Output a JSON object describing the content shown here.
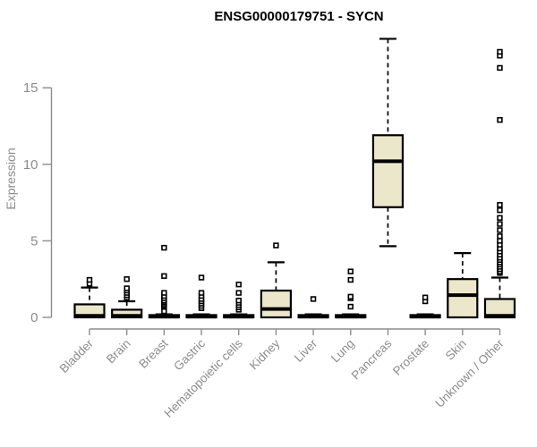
{
  "chart_data": {
    "type": "box",
    "title": "ENSG00000179751 - SYCN",
    "xlabel": "",
    "ylabel": "Expression",
    "legend": "none",
    "grid": false,
    "y_axis": {
      "ticks": [
        0,
        5,
        10,
        15
      ],
      "range": [
        -0.8,
        19.0
      ]
    },
    "categories": [
      "Bladder",
      "Brain",
      "Breast",
      "Gastric",
      "Hematopoietic cells",
      "Kidney",
      "Liver",
      "Lung",
      "Pancreas",
      "Prostate",
      "Skin",
      "Unknown / Other"
    ],
    "boxes": [
      {
        "category": "Bladder",
        "whislo": 0,
        "q1": 0,
        "med": 0.1,
        "q3": 0.85,
        "whishi": 1.95,
        "outliers": [
          2.2,
          2.45
        ]
      },
      {
        "category": "Brain",
        "whislo": 0,
        "q1": 0,
        "med": 0.1,
        "q3": 0.5,
        "whishi": 1.05,
        "outliers": [
          1.3,
          1.45,
          1.6,
          1.75,
          1.9,
          2.5
        ]
      },
      {
        "category": "Breast",
        "whislo": 0,
        "q1": 0,
        "med": 0.05,
        "q3": 0.15,
        "whishi": 0.2,
        "outliers": [
          0.4,
          0.7,
          0.8,
          0.9,
          1.0,
          1.1,
          1.25,
          1.4,
          1.6,
          2.7,
          4.55
        ]
      },
      {
        "category": "Gastric",
        "whislo": 0,
        "q1": 0,
        "med": 0.05,
        "q3": 0.15,
        "whishi": 0.2,
        "outliers": [
          0.6,
          0.75,
          0.9,
          1.05,
          1.2,
          1.4,
          1.6,
          2.6
        ]
      },
      {
        "category": "Hematopoietic cells",
        "whislo": 0,
        "q1": 0,
        "med": 0.05,
        "q3": 0.15,
        "whishi": 0.2,
        "outliers": [
          0.5,
          0.65,
          0.8,
          0.95,
          1.1,
          1.6,
          2.15
        ]
      },
      {
        "category": "Kidney",
        "whislo": 0,
        "q1": 0,
        "med": 0.55,
        "q3": 1.75,
        "whishi": 3.6,
        "outliers": [
          4.7
        ]
      },
      {
        "category": "Liver",
        "whislo": 0,
        "q1": 0,
        "med": 0.05,
        "q3": 0.15,
        "whishi": 0.2,
        "outliers": [
          1.2
        ]
      },
      {
        "category": "Lung",
        "whislo": 0,
        "q1": 0,
        "med": 0.05,
        "q3": 0.15,
        "whishi": 0.2,
        "outliers": [
          0.7,
          1.25,
          1.35,
          2.45,
          3.0
        ]
      },
      {
        "category": "Pancreas",
        "whislo": 4.65,
        "q1": 7.2,
        "med": 10.2,
        "q3": 11.9,
        "whishi": 18.2,
        "outliers": []
      },
      {
        "category": "Prostate",
        "whislo": 0,
        "q1": 0,
        "med": 0.05,
        "q3": 0.15,
        "whishi": 0.2,
        "outliers": [
          1.05,
          1.3
        ]
      },
      {
        "category": "Skin",
        "whislo": 0,
        "q1": 0,
        "med": 1.45,
        "q3": 2.5,
        "whishi": 4.2,
        "outliers": []
      },
      {
        "category": "Unknown / Other",
        "whislo": 0,
        "q1": 0,
        "med": 0.1,
        "q3": 1.2,
        "whishi": 2.6,
        "outliers": [
          2.9,
          3.0,
          3.15,
          3.3,
          3.45,
          3.6,
          3.75,
          3.9,
          4.1,
          4.3,
          4.5,
          4.75,
          5.0,
          5.3,
          5.7,
          6.1,
          6.5,
          7.0,
          7.35,
          12.9,
          16.3,
          17.1,
          17.35
        ]
      }
    ],
    "colors": {
      "box_fill": "#ECE7CB",
      "box_border": "#000000",
      "median": "#000000",
      "whisker": "#000000",
      "outlier_stroke": "#000000",
      "outlier_fill": "#ffffff",
      "axis": "#8C8C8C",
      "tick_label": "#8C8C8C",
      "title": "#000000"
    }
  }
}
